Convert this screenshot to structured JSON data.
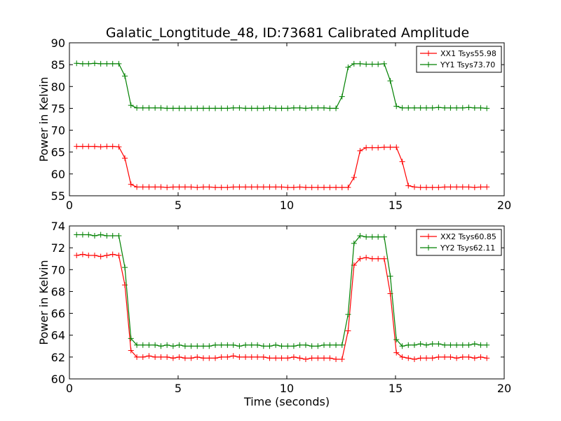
{
  "title": "Galatic_Longtitude_48, ID:73681 Calibrated Amplitude",
  "chart_data": [
    {
      "type": "line",
      "ylabel": "Power in Kelvin",
      "xlabel": "",
      "xlim": [
        0,
        20
      ],
      "ylim": [
        55,
        90
      ],
      "xticks": [
        0,
        5,
        10,
        15,
        20
      ],
      "yticks": [
        55,
        60,
        65,
        70,
        75,
        80,
        85,
        90
      ],
      "legend_position": "top-right",
      "x": [
        0.33,
        0.61,
        0.88,
        1.16,
        1.44,
        1.72,
        1.99,
        2.27,
        2.55,
        2.83,
        3.1,
        3.38,
        3.66,
        3.94,
        4.21,
        4.49,
        4.77,
        5.05,
        5.32,
        5.6,
        5.88,
        6.16,
        6.43,
        6.71,
        6.99,
        7.27,
        7.54,
        7.82,
        8.1,
        8.38,
        8.65,
        8.93,
        9.21,
        9.49,
        9.76,
        10.04,
        10.32,
        10.6,
        10.87,
        11.15,
        11.43,
        11.71,
        11.98,
        12.26,
        12.54,
        12.82,
        13.09,
        13.37,
        13.65,
        13.93,
        14.2,
        14.48,
        14.76,
        15.04,
        15.31,
        15.59,
        15.87,
        16.15,
        16.42,
        16.7,
        16.98,
        17.26,
        17.53,
        17.81,
        18.09,
        18.37,
        18.64,
        18.92,
        19.2
      ],
      "series": [
        {
          "name": "XX1 Tsys55.98",
          "color": "#ff0000",
          "values": [
            66.3,
            66.3,
            66.3,
            66.3,
            66.2,
            66.3,
            66.3,
            66.2,
            63.6,
            57.6,
            57.0,
            57.0,
            57.0,
            57.0,
            57.0,
            56.9,
            57.0,
            57.0,
            57.0,
            57.0,
            56.9,
            57.0,
            57.0,
            56.9,
            56.9,
            56.9,
            57.0,
            57.0,
            57.0,
            57.0,
            57.0,
            57.0,
            57.0,
            57.0,
            57.0,
            56.9,
            56.9,
            57.0,
            56.9,
            56.9,
            56.9,
            56.9,
            56.9,
            56.9,
            56.9,
            56.9,
            59.2,
            65.3,
            66.0,
            66.0,
            66.0,
            66.1,
            66.1,
            66.1,
            62.8,
            57.3,
            57.0,
            56.9,
            56.9,
            56.9,
            56.9,
            57.0,
            57.0,
            57.0,
            57.0,
            57.0,
            56.9,
            57.0,
            57.0
          ]
        },
        {
          "name": "YY1 Tsys73.70",
          "color": "#008000",
          "values": [
            85.3,
            85.2,
            85.2,
            85.3,
            85.2,
            85.2,
            85.2,
            85.2,
            82.4,
            75.7,
            75.1,
            75.1,
            75.1,
            75.1,
            75.1,
            75.0,
            75.0,
            75.0,
            75.0,
            75.0,
            75.0,
            75.0,
            75.0,
            75.0,
            75.0,
            75.0,
            75.1,
            75.1,
            75.0,
            75.0,
            75.0,
            75.0,
            75.1,
            75.0,
            75.0,
            75.0,
            75.1,
            75.1,
            75.0,
            75.1,
            75.1,
            75.1,
            75.0,
            75.0,
            77.7,
            84.4,
            85.2,
            85.2,
            85.1,
            85.1,
            85.1,
            85.2,
            81.3,
            75.5,
            75.1,
            75.1,
            75.1,
            75.1,
            75.1,
            75.1,
            75.2,
            75.1,
            75.1,
            75.1,
            75.1,
            75.2,
            75.1,
            75.1,
            75.0
          ]
        }
      ]
    },
    {
      "type": "line",
      "ylabel": "Power in Kelvin",
      "xlabel": "Time (seconds)",
      "xlim": [
        0,
        20
      ],
      "ylim": [
        60,
        74
      ],
      "xticks": [
        0,
        5,
        10,
        15,
        20
      ],
      "yticks": [
        60,
        62,
        64,
        66,
        68,
        70,
        72,
        74
      ],
      "legend_position": "top-right",
      "x": [
        0.33,
        0.61,
        0.88,
        1.16,
        1.44,
        1.72,
        1.99,
        2.27,
        2.55,
        2.83,
        3.1,
        3.38,
        3.66,
        3.94,
        4.21,
        4.49,
        4.77,
        5.05,
        5.32,
        5.6,
        5.88,
        6.16,
        6.43,
        6.71,
        6.99,
        7.27,
        7.54,
        7.82,
        8.1,
        8.38,
        8.65,
        8.93,
        9.21,
        9.49,
        9.76,
        10.04,
        10.32,
        10.6,
        10.87,
        11.15,
        11.43,
        11.71,
        11.98,
        12.26,
        12.54,
        12.82,
        13.09,
        13.37,
        13.65,
        13.93,
        14.2,
        14.48,
        14.76,
        15.04,
        15.31,
        15.59,
        15.87,
        16.15,
        16.42,
        16.7,
        16.98,
        17.26,
        17.53,
        17.81,
        18.09,
        18.37,
        18.64,
        18.92,
        19.2
      ],
      "series": [
        {
          "name": "XX2 Tsys60.85",
          "color": "#ff0000",
          "values": [
            71.3,
            71.4,
            71.3,
            71.3,
            71.2,
            71.3,
            71.4,
            71.3,
            68.6,
            62.6,
            62.0,
            62.0,
            62.1,
            62.0,
            62.0,
            62.0,
            61.9,
            62.0,
            61.9,
            61.9,
            62.0,
            61.9,
            61.9,
            61.9,
            62.0,
            62.0,
            62.1,
            62.0,
            62.0,
            62.0,
            62.0,
            62.0,
            61.9,
            61.9,
            61.9,
            61.9,
            62.0,
            61.9,
            61.8,
            61.9,
            61.9,
            61.9,
            61.9,
            61.8,
            61.8,
            64.4,
            70.4,
            71.0,
            71.1,
            71.0,
            71.0,
            71.0,
            67.8,
            62.4,
            62.0,
            61.9,
            61.8,
            61.9,
            61.9,
            61.9,
            62.0,
            62.0,
            62.0,
            61.9,
            62.0,
            62.0,
            61.9,
            62.0,
            61.9
          ]
        },
        {
          "name": "YY2 Tsys62.11",
          "color": "#008000",
          "values": [
            73.2,
            73.2,
            73.2,
            73.1,
            73.2,
            73.1,
            73.1,
            73.1,
            70.2,
            63.7,
            63.1,
            63.1,
            63.1,
            63.1,
            63.0,
            63.1,
            63.0,
            63.1,
            63.0,
            63.0,
            63.0,
            63.0,
            63.0,
            63.1,
            63.1,
            63.1,
            63.1,
            63.0,
            63.1,
            63.1,
            63.1,
            63.0,
            63.0,
            63.1,
            63.0,
            63.0,
            63.0,
            63.1,
            63.1,
            63.0,
            63.0,
            63.1,
            63.1,
            63.1,
            63.1,
            65.9,
            72.4,
            73.1,
            73.0,
            73.0,
            73.0,
            73.0,
            69.4,
            63.6,
            63.0,
            63.1,
            63.1,
            63.2,
            63.1,
            63.2,
            63.2,
            63.1,
            63.1,
            63.1,
            63.1,
            63.1,
            63.2,
            63.1,
            63.1
          ]
        }
      ]
    }
  ]
}
